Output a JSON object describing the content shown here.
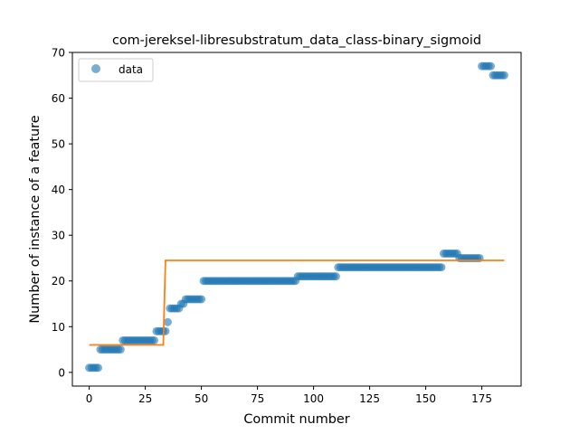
{
  "chart_data": {
    "type": "scatter",
    "title": "com-jereksel-libresubstratum_data_class-binary_sigmoid",
    "xlabel": "Commit number",
    "ylabel": "Number of instance of a feature",
    "xlim": [
      -7.5,
      192.5
    ],
    "ylim": [
      -3,
      70
    ],
    "xticks": [
      0,
      25,
      50,
      75,
      100,
      125,
      150,
      175
    ],
    "yticks": [
      0,
      10,
      20,
      30,
      40,
      50,
      60,
      70
    ],
    "grid": false,
    "legend": {
      "location": "upper left",
      "entries": [
        "data"
      ]
    },
    "colors": {
      "data": "#1f77b4",
      "fit": "#ff7f0e"
    },
    "series": [
      {
        "name": "data",
        "kind": "scatter",
        "segments": [
          {
            "x_start": 0,
            "x_end": 4,
            "y": 1
          },
          {
            "x_start": 5,
            "x_end": 14,
            "y": 5
          },
          {
            "x_start": 15,
            "x_end": 29,
            "y": 7
          },
          {
            "x_start": 30,
            "x_end": 34,
            "y": 9
          },
          {
            "x_start": 35,
            "x_end": 35,
            "y": 11
          },
          {
            "x_start": 36,
            "x_end": 40,
            "y": 14
          },
          {
            "x_start": 41,
            "x_end": 42,
            "y": 15
          },
          {
            "x_start": 43,
            "x_end": 50,
            "y": 16
          },
          {
            "x_start": 51,
            "x_end": 92,
            "y": 20
          },
          {
            "x_start": 93,
            "x_end": 110,
            "y": 21
          },
          {
            "x_start": 111,
            "x_end": 157,
            "y": 23
          },
          {
            "x_start": 158,
            "x_end": 164,
            "y": 26
          },
          {
            "x_start": 165,
            "x_end": 174,
            "y": 25
          },
          {
            "x_start": 175,
            "x_end": 179,
            "y": 67
          },
          {
            "x_start": 180,
            "x_end": 185,
            "y": 65
          }
        ]
      },
      {
        "kind": "line",
        "x": [
          0,
          33,
          34,
          185
        ],
        "y": [
          6,
          6,
          24.5,
          24.5
        ]
      }
    ]
  }
}
